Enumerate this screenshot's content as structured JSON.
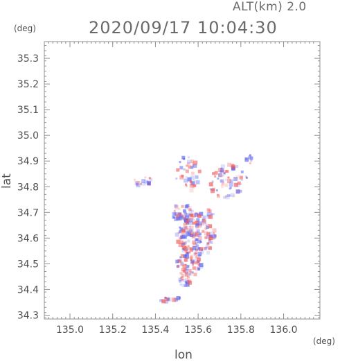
{
  "header": {
    "alt_label": "ALT(km)  2.0",
    "timestamp": "2020/09/17 10:04:30"
  },
  "axes": {
    "y_unit": "(deg)",
    "x_unit": "(deg)",
    "y_label": "lat",
    "x_label": "lon"
  },
  "chart_data": {
    "type": "heatmap",
    "xlabel": "lon",
    "ylabel": "lat",
    "xlim": [
      134.88,
      136.17
    ],
    "ylim": [
      34.285,
      35.365
    ],
    "x_ticks": [
      "135.0",
      "135.2",
      "135.4",
      "135.6",
      "135.8",
      "136.0"
    ],
    "x_tick_values": [
      135.0,
      135.2,
      135.4,
      135.6,
      135.8,
      136.0
    ],
    "y_ticks": [
      "34.3",
      "34.4",
      "34.5",
      "34.6",
      "34.7",
      "34.8",
      "34.9",
      "35.0",
      "35.1",
      "35.2",
      "35.3"
    ],
    "y_tick_values": [
      34.3,
      34.4,
      34.5,
      34.6,
      34.7,
      34.8,
      34.9,
      35.0,
      35.1,
      35.2,
      35.3
    ],
    "grid": false,
    "colors": {
      "positive": "#ef5b5b",
      "negative": "#5a62ef",
      "axis": "#909090"
    },
    "clusters": [
      {
        "lon": 135.59,
        "lat": 34.61,
        "rlon": 0.09,
        "rlat": 0.09,
        "n": 160
      },
      {
        "lon": 135.56,
        "lat": 34.5,
        "rlon": 0.06,
        "rlat": 0.05,
        "n": 70
      },
      {
        "lon": 135.53,
        "lat": 34.7,
        "rlon": 0.07,
        "rlat": 0.03,
        "n": 40
      },
      {
        "lon": 135.54,
        "lat": 34.43,
        "rlon": 0.03,
        "rlat": 0.03,
        "n": 20
      },
      {
        "lon": 135.74,
        "lat": 34.82,
        "rlon": 0.09,
        "rlat": 0.07,
        "n": 70
      },
      {
        "lon": 135.55,
        "lat": 34.85,
        "rlon": 0.06,
        "rlat": 0.07,
        "n": 40
      },
      {
        "lon": 135.35,
        "lat": 34.82,
        "rlon": 0.05,
        "rlat": 0.02,
        "n": 18
      },
      {
        "lon": 135.48,
        "lat": 34.36,
        "rlon": 0.06,
        "rlat": 0.01,
        "n": 14
      },
      {
        "lon": 135.84,
        "lat": 34.91,
        "rlon": 0.02,
        "rlat": 0.02,
        "n": 10
      },
      {
        "lon": 135.66,
        "lat": 34.7,
        "rlon": 0.02,
        "rlat": 0.02,
        "n": 8
      }
    ]
  }
}
